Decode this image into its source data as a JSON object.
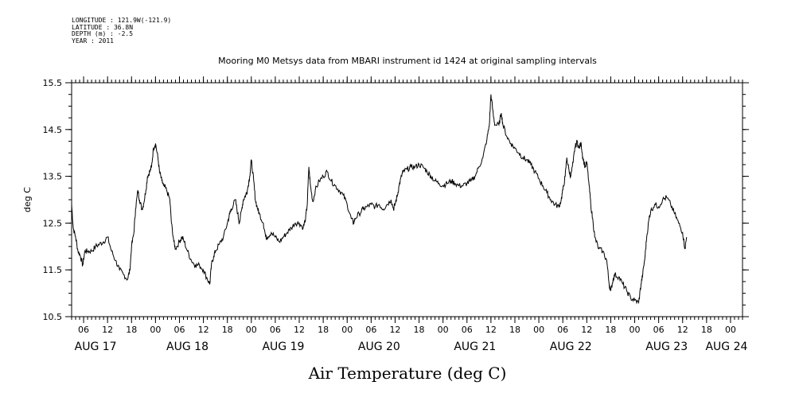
{
  "meta": {
    "longitude": "LONGITUDE : 121.9W(-121.9)",
    "latitude": "LATITUDE : 36.8N",
    "depth": "DEPTH (m) : -2.5",
    "year": "YEAR : 2011"
  },
  "chart_data": {
    "type": "line",
    "title": "Mooring M0 Metsys data from MBARI instrument id 1424 at original sampling intervals",
    "xlabel": "Air Temperature (deg C)",
    "ylabel": "deg C",
    "ylim": [
      10.5,
      15.5
    ],
    "yticks": [
      "10.5",
      "11.5",
      "12.5",
      "13.5",
      "14.5",
      "15.5"
    ],
    "x_range_hours": [
      3,
      171
    ],
    "hour_ticks": [
      {
        "h": 6,
        "label": "06"
      },
      {
        "h": 12,
        "label": "12"
      },
      {
        "h": 18,
        "label": "18"
      },
      {
        "h": 24,
        "label": "00"
      },
      {
        "h": 30,
        "label": "06"
      },
      {
        "h": 36,
        "label": "12"
      },
      {
        "h": 42,
        "label": "18"
      },
      {
        "h": 48,
        "label": "00"
      },
      {
        "h": 54,
        "label": "06"
      },
      {
        "h": 60,
        "label": "12"
      },
      {
        "h": 66,
        "label": "18"
      },
      {
        "h": 72,
        "label": "00"
      },
      {
        "h": 78,
        "label": "06"
      },
      {
        "h": 84,
        "label": "12"
      },
      {
        "h": 90,
        "label": "18"
      },
      {
        "h": 96,
        "label": "00"
      },
      {
        "h": 102,
        "label": "06"
      },
      {
        "h": 108,
        "label": "12"
      },
      {
        "h": 114,
        "label": "18"
      },
      {
        "h": 120,
        "label": "00"
      },
      {
        "h": 126,
        "label": "06"
      },
      {
        "h": 132,
        "label": "12"
      },
      {
        "h": 138,
        "label": "18"
      },
      {
        "h": 144,
        "label": "00"
      },
      {
        "h": 150,
        "label": "06"
      },
      {
        "h": 156,
        "label": "12"
      },
      {
        "h": 162,
        "label": "18"
      },
      {
        "h": 168,
        "label": "00"
      }
    ],
    "day_labels": [
      {
        "h": 9,
        "label": "AUG 17"
      },
      {
        "h": 32,
        "label": "AUG 18"
      },
      {
        "h": 56,
        "label": "AUG 19"
      },
      {
        "h": 80,
        "label": "AUG 20"
      },
      {
        "h": 104,
        "label": "AUG 21"
      },
      {
        "h": 128,
        "label": "AUG 22"
      },
      {
        "h": 152,
        "label": "AUG 23"
      },
      {
        "h": 167,
        "label": "AUG 24"
      }
    ],
    "series": [
      {
        "values": [
          [
            3.0,
            12.9
          ],
          [
            3.4,
            12.4
          ],
          [
            4.0,
            12.2
          ],
          [
            4.6,
            11.9
          ],
          [
            5.2,
            11.8
          ],
          [
            5.8,
            11.6
          ],
          [
            6.3,
            11.9
          ],
          [
            7.0,
            11.9
          ],
          [
            8.0,
            11.9
          ],
          [
            9.0,
            12.0
          ],
          [
            10.0,
            12.05
          ],
          [
            11.0,
            12.1
          ],
          [
            12.0,
            12.2
          ],
          [
            13.0,
            11.9
          ],
          [
            14.0,
            11.7
          ],
          [
            15.0,
            11.5
          ],
          [
            16.0,
            11.4
          ],
          [
            17.0,
            11.3
          ],
          [
            17.6,
            11.5
          ],
          [
            18.0,
            12.0
          ],
          [
            18.6,
            12.3
          ],
          [
            19.0,
            12.8
          ],
          [
            19.6,
            13.2
          ],
          [
            20.0,
            13.0
          ],
          [
            20.6,
            12.8
          ],
          [
            21.0,
            12.9
          ],
          [
            21.6,
            13.2
          ],
          [
            22.0,
            13.5
          ],
          [
            22.6,
            13.6
          ],
          [
            23.0,
            13.7
          ],
          [
            23.5,
            14.1
          ],
          [
            24.0,
            14.2
          ],
          [
            24.6,
            13.9
          ],
          [
            25.0,
            13.6
          ],
          [
            25.6,
            13.4
          ],
          [
            26.0,
            13.3
          ],
          [
            26.8,
            13.2
          ],
          [
            27.6,
            13.0
          ],
          [
            28.0,
            12.5
          ],
          [
            28.6,
            12.1
          ],
          [
            29.0,
            11.95
          ],
          [
            30.0,
            12.1
          ],
          [
            30.6,
            12.2
          ],
          [
            31.0,
            12.15
          ],
          [
            32.0,
            11.9
          ],
          [
            33.0,
            11.7
          ],
          [
            34.0,
            11.6
          ],
          [
            35.0,
            11.6
          ],
          [
            36.0,
            11.5
          ],
          [
            37.0,
            11.3
          ],
          [
            37.6,
            11.2
          ],
          [
            38.0,
            11.6
          ],
          [
            38.6,
            11.8
          ],
          [
            39.0,
            11.9
          ],
          [
            40.0,
            12.05
          ],
          [
            41.0,
            12.2
          ],
          [
            42.0,
            12.5
          ],
          [
            42.6,
            12.7
          ],
          [
            43.0,
            12.8
          ],
          [
            44.0,
            13.0
          ],
          [
            44.6,
            12.7
          ],
          [
            45.0,
            12.5
          ],
          [
            45.6,
            12.8
          ],
          [
            46.0,
            13.0
          ],
          [
            46.6,
            13.1
          ],
          [
            47.0,
            13.2
          ],
          [
            47.6,
            13.5
          ],
          [
            48.0,
            13.85
          ],
          [
            48.6,
            13.4
          ],
          [
            49.0,
            13.0
          ],
          [
            49.6,
            12.8
          ],
          [
            50.0,
            12.7
          ],
          [
            51.0,
            12.5
          ],
          [
            51.6,
            12.2
          ],
          [
            52.0,
            12.2
          ],
          [
            53.0,
            12.3
          ],
          [
            54.0,
            12.2
          ],
          [
            55.0,
            12.1
          ],
          [
            56.0,
            12.2
          ],
          [
            57.0,
            12.3
          ],
          [
            58.0,
            12.4
          ],
          [
            59.0,
            12.5
          ],
          [
            60.0,
            12.5
          ],
          [
            61.0,
            12.4
          ],
          [
            61.6,
            12.6
          ],
          [
            62.0,
            12.9
          ],
          [
            62.4,
            13.7
          ],
          [
            62.8,
            13.3
          ],
          [
            63.4,
            12.95
          ],
          [
            64.0,
            13.2
          ],
          [
            65.0,
            13.4
          ],
          [
            66.0,
            13.5
          ],
          [
            67.0,
            13.6
          ],
          [
            68.0,
            13.4
          ],
          [
            69.0,
            13.3
          ],
          [
            70.0,
            13.2
          ],
          [
            71.0,
            13.1
          ],
          [
            72.0,
            12.9
          ],
          [
            73.0,
            12.6
          ],
          [
            73.6,
            12.5
          ],
          [
            74.0,
            12.6
          ],
          [
            75.0,
            12.7
          ],
          [
            76.0,
            12.8
          ],
          [
            77.0,
            12.85
          ],
          [
            78.0,
            12.9
          ],
          [
            79.0,
            12.85
          ],
          [
            80.0,
            12.9
          ],
          [
            81.0,
            12.8
          ],
          [
            82.0,
            12.9
          ],
          [
            83.0,
            13.0
          ],
          [
            83.6,
            12.8
          ],
          [
            84.0,
            12.9
          ],
          [
            84.6,
            13.1
          ],
          [
            85.0,
            13.3
          ],
          [
            85.6,
            13.5
          ],
          [
            86.0,
            13.6
          ],
          [
            87.0,
            13.65
          ],
          [
            88.0,
            13.7
          ],
          [
            89.0,
            13.7
          ],
          [
            90.0,
            13.75
          ],
          [
            91.0,
            13.7
          ],
          [
            92.0,
            13.6
          ],
          [
            93.0,
            13.5
          ],
          [
            94.0,
            13.4
          ],
          [
            95.0,
            13.35
          ],
          [
            96.0,
            13.3
          ],
          [
            97.0,
            13.35
          ],
          [
            98.0,
            13.4
          ],
          [
            99.0,
            13.35
          ],
          [
            100.0,
            13.3
          ],
          [
            101.0,
            13.3
          ],
          [
            102.0,
            13.35
          ],
          [
            103.0,
            13.4
          ],
          [
            104.0,
            13.5
          ],
          [
            105.0,
            13.7
          ],
          [
            106.0,
            13.9
          ],
          [
            107.0,
            14.3
          ],
          [
            107.6,
            14.6
          ],
          [
            108.0,
            15.25
          ],
          [
            108.6,
            14.8
          ],
          [
            109.0,
            14.6
          ],
          [
            110.0,
            14.6
          ],
          [
            110.6,
            14.85
          ],
          [
            111.0,
            14.6
          ],
          [
            112.0,
            14.35
          ],
          [
            113.0,
            14.2
          ],
          [
            114.0,
            14.1
          ],
          [
            115.0,
            14.0
          ],
          [
            116.0,
            13.9
          ],
          [
            117.0,
            13.85
          ],
          [
            118.0,
            13.75
          ],
          [
            119.0,
            13.6
          ],
          [
            120.0,
            13.45
          ],
          [
            121.0,
            13.3
          ],
          [
            122.0,
            13.15
          ],
          [
            123.0,
            13.0
          ],
          [
            124.0,
            12.9
          ],
          [
            125.0,
            12.85
          ],
          [
            125.6,
            13.0
          ],
          [
            126.0,
            13.2
          ],
          [
            126.6,
            13.5
          ],
          [
            127.0,
            13.9
          ],
          [
            127.6,
            13.6
          ],
          [
            128.0,
            13.5
          ],
          [
            128.6,
            13.8
          ],
          [
            129.0,
            14.1
          ],
          [
            129.6,
            14.25
          ],
          [
            130.0,
            14.1
          ],
          [
            130.6,
            14.2
          ],
          [
            131.0,
            13.9
          ],
          [
            131.6,
            13.7
          ],
          [
            132.0,
            13.8
          ],
          [
            132.6,
            13.3
          ],
          [
            133.0,
            12.9
          ],
          [
            133.6,
            12.5
          ],
          [
            134.0,
            12.2
          ],
          [
            135.0,
            11.95
          ],
          [
            136.0,
            11.9
          ],
          [
            137.0,
            11.7
          ],
          [
            137.6,
            11.2
          ],
          [
            138.0,
            11.05
          ],
          [
            138.6,
            11.3
          ],
          [
            139.0,
            11.4
          ],
          [
            140.0,
            11.35
          ],
          [
            141.0,
            11.2
          ],
          [
            142.0,
            11.05
          ],
          [
            143.0,
            10.9
          ],
          [
            144.0,
            10.85
          ],
          [
            145.0,
            10.8
          ],
          [
            145.6,
            11.2
          ],
          [
            146.0,
            11.4
          ],
          [
            146.6,
            11.8
          ],
          [
            147.0,
            12.2
          ],
          [
            147.6,
            12.6
          ],
          [
            148.0,
            12.75
          ],
          [
            149.0,
            12.9
          ],
          [
            150.0,
            12.85
          ],
          [
            151.0,
            13.0
          ],
          [
            152.0,
            13.05
          ],
          [
            153.0,
            12.9
          ],
          [
            154.0,
            12.7
          ],
          [
            155.0,
            12.5
          ],
          [
            156.0,
            12.3
          ],
          [
            156.6,
            11.95
          ],
          [
            157.0,
            12.2
          ]
        ]
      }
    ],
    "grid": false
  }
}
